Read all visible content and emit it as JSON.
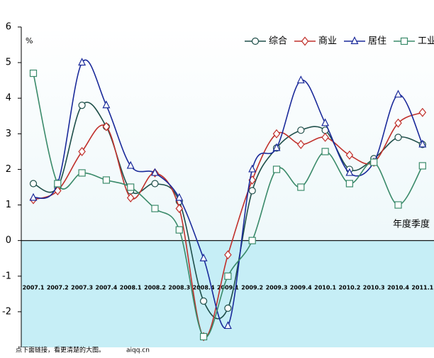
{
  "chart_data": {
    "type": "line",
    "unit_label": "%",
    "x_axis_label": "年度季度",
    "footer_note": "点下面链接，看更清楚的大图。",
    "footer_site": "aiqq.cn",
    "categories": [
      "2007.1",
      "2007.2",
      "2007.3",
      "2007.4",
      "2008.1",
      "2008.2",
      "2008.3",
      "2008.4",
      "2009.1",
      "2009.2",
      "2009.3",
      "2009.4",
      "2010.1",
      "2010.2",
      "2010.3",
      "2010.4",
      "2011.1"
    ],
    "ylim": [
      -3,
      6
    ],
    "yticks": [
      -2,
      -1,
      0,
      1,
      2,
      3,
      4,
      5,
      6
    ],
    "legend": "top-right",
    "series": [
      {
        "name": "综合",
        "color": "#1f4f4a",
        "marker": "circle",
        "values": [
          1.6,
          1.5,
          3.8,
          3.2,
          1.4,
          1.6,
          1.1,
          -1.7,
          -1.9,
          1.4,
          2.6,
          3.1,
          3.1,
          2.0,
          2.3,
          2.9,
          2.7
        ]
      },
      {
        "name": "商业",
        "color": "#c0302b",
        "marker": "diamond",
        "values": [
          1.15,
          1.4,
          2.5,
          3.2,
          1.2,
          1.9,
          0.9,
          -2.7,
          -0.4,
          1.7,
          3.0,
          2.7,
          2.9,
          2.4,
          2.2,
          3.3,
          3.6
        ]
      },
      {
        "name": "居住",
        "color": "#1a2a9a",
        "marker": "triangle",
        "values": [
          1.2,
          1.6,
          5.0,
          3.8,
          2.1,
          1.9,
          1.2,
          -0.5,
          -2.4,
          2.0,
          2.6,
          4.5,
          3.3,
          1.9,
          2.2,
          4.1,
          2.7
        ]
      },
      {
        "name": "工业",
        "color": "#3a8a6a",
        "marker": "square",
        "values": [
          4.7,
          1.6,
          1.9,
          1.7,
          1.5,
          0.9,
          0.3,
          -2.7,
          -1.0,
          0.0,
          2.0,
          1.5,
          2.5,
          1.6,
          2.2,
          1.0,
          2.1
        ]
      }
    ]
  }
}
